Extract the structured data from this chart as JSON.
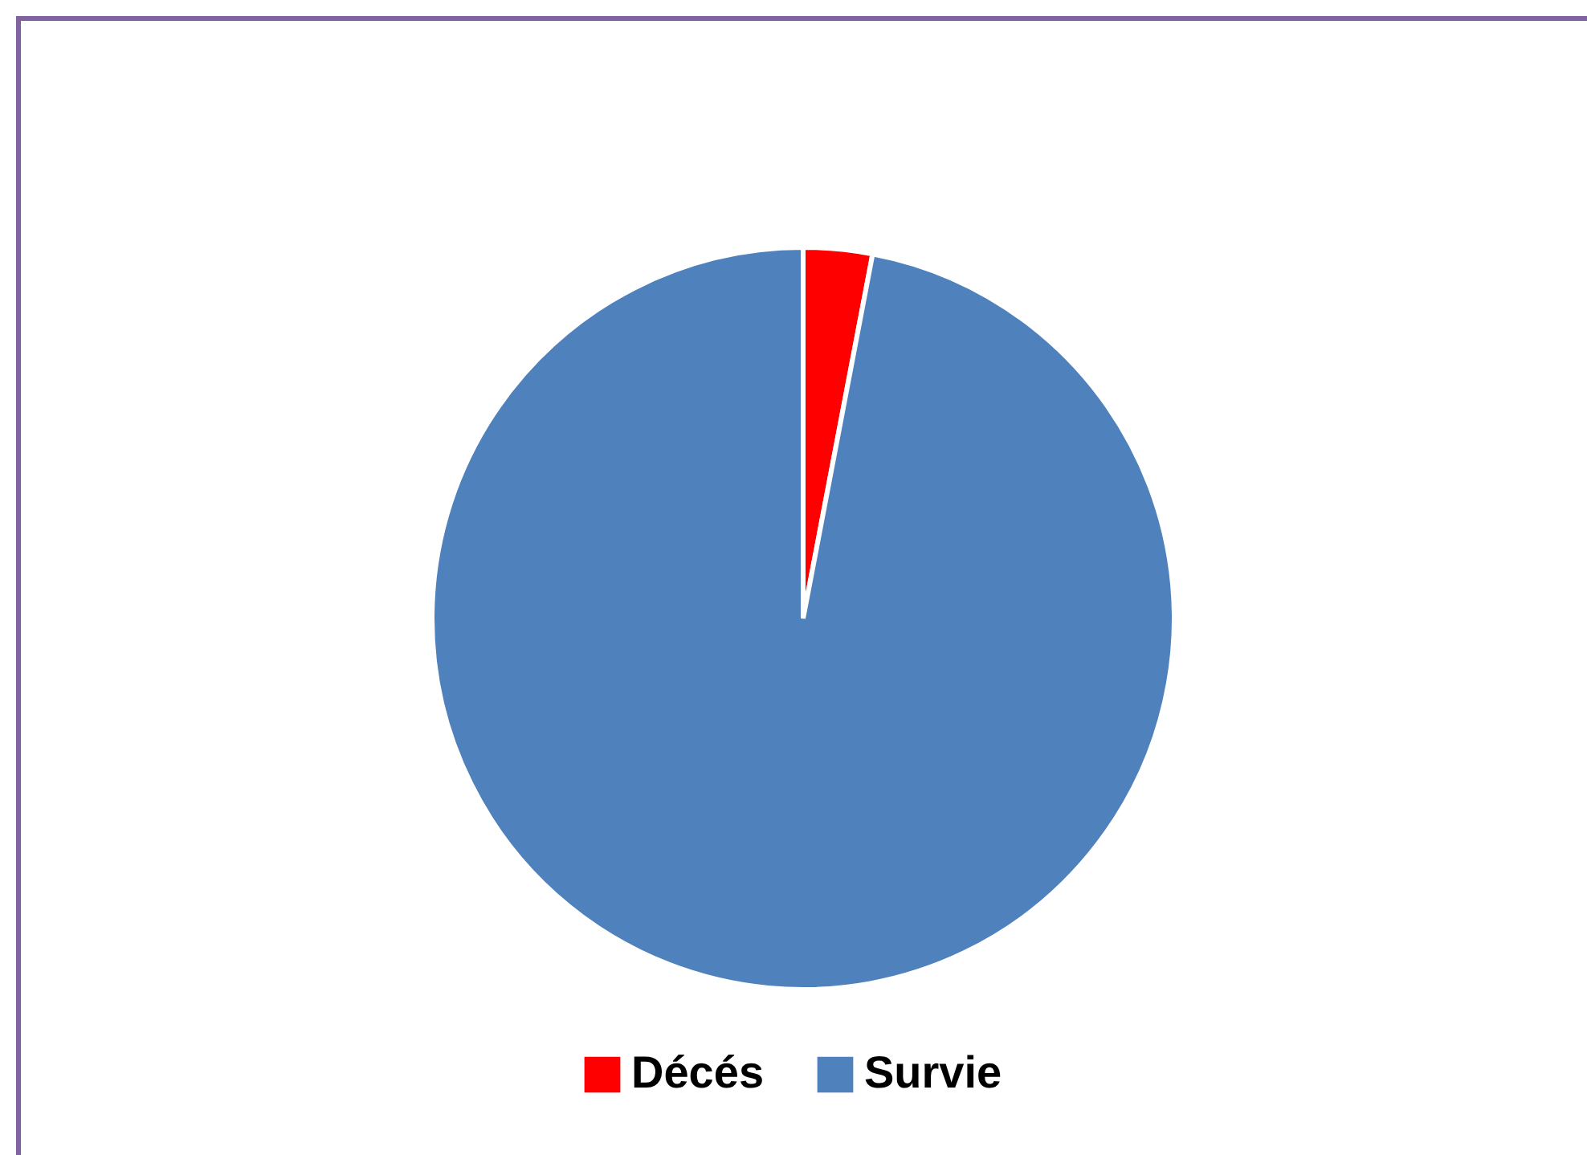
{
  "chart_data": {
    "type": "pie",
    "categories": [
      "Décés",
      "Survie"
    ],
    "values": [
      3,
      97
    ],
    "colors": [
      "#ff0000",
      "#4f81bd"
    ],
    "legend": "bottom"
  }
}
